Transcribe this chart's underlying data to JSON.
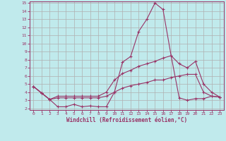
{
  "xlabel": "Windchill (Refroidissement éolien,°C)",
  "background_color": "#c0eaec",
  "grid_color": "#b0b0b0",
  "line_color": "#993366",
  "xlim": [
    -0.5,
    23.5
  ],
  "ylim": [
    1.8,
    15.2
  ],
  "yticks": [
    2,
    3,
    4,
    5,
    6,
    7,
    8,
    9,
    10,
    11,
    12,
    13,
    14,
    15
  ],
  "xticks": [
    0,
    1,
    2,
    3,
    4,
    5,
    6,
    7,
    8,
    9,
    10,
    11,
    12,
    13,
    14,
    15,
    16,
    17,
    18,
    19,
    20,
    21,
    22,
    23
  ],
  "line1_x": [
    0,
    1,
    2,
    3,
    4,
    5,
    6,
    7,
    8,
    9,
    10,
    11,
    12,
    13,
    14,
    15,
    16,
    17,
    18,
    19,
    20,
    21,
    22,
    23
  ],
  "line1_y": [
    4.7,
    3.9,
    3.1,
    2.2,
    2.2,
    2.5,
    2.2,
    2.3,
    2.2,
    2.2,
    4.0,
    7.7,
    8.4,
    11.5,
    13.0,
    15.0,
    14.2,
    8.5,
    3.3,
    3.0,
    3.2,
    3.2,
    3.5,
    3.4
  ],
  "line2_x": [
    0,
    1,
    2,
    3,
    4,
    5,
    6,
    7,
    8,
    9,
    10,
    11,
    12,
    13,
    14,
    15,
    16,
    17,
    18,
    19,
    20,
    21,
    22,
    23
  ],
  "line2_y": [
    4.7,
    3.9,
    3.1,
    3.5,
    3.5,
    3.5,
    3.5,
    3.5,
    3.5,
    4.0,
    5.5,
    6.3,
    6.7,
    7.2,
    7.5,
    7.8,
    8.2,
    8.5,
    7.5,
    7.0,
    7.8,
    5.0,
    4.0,
    3.4
  ],
  "line3_x": [
    0,
    1,
    2,
    3,
    4,
    5,
    6,
    7,
    8,
    9,
    10,
    11,
    12,
    13,
    14,
    15,
    16,
    17,
    18,
    19,
    20,
    21,
    22,
    23
  ],
  "line3_y": [
    4.7,
    3.9,
    3.1,
    3.3,
    3.3,
    3.3,
    3.3,
    3.3,
    3.3,
    3.5,
    4.0,
    4.5,
    4.8,
    5.0,
    5.2,
    5.5,
    5.5,
    5.8,
    6.0,
    6.2,
    6.2,
    4.0,
    3.5,
    3.4
  ]
}
